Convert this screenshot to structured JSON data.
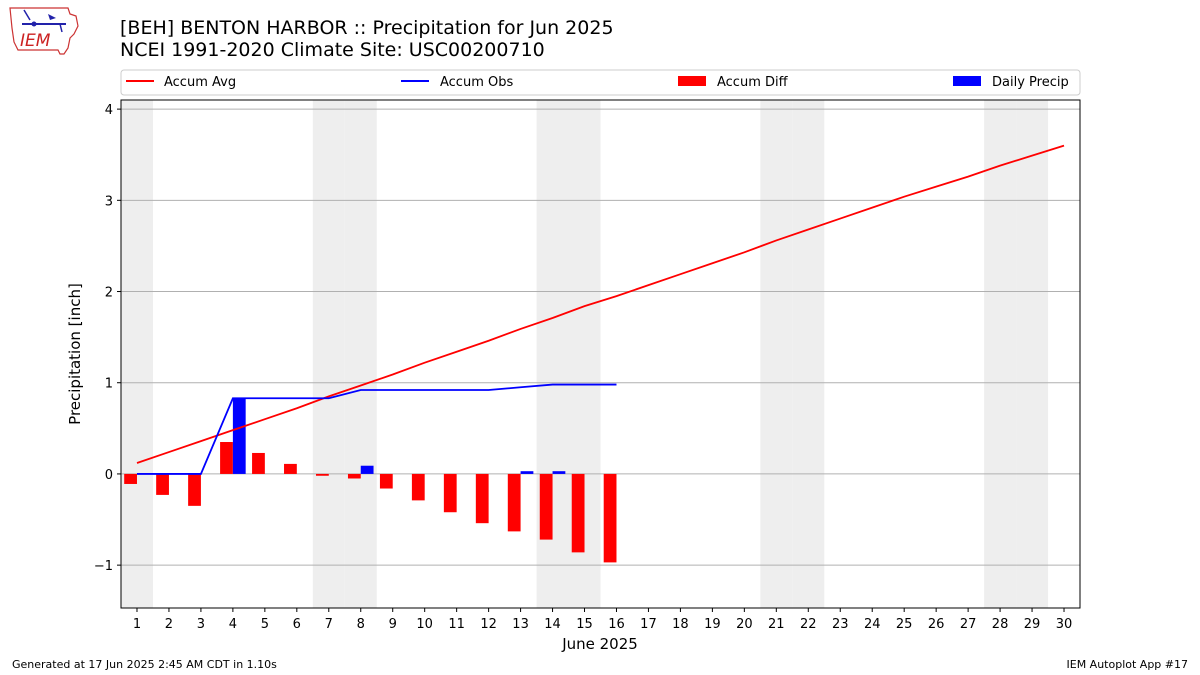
{
  "header": {
    "title_line1": "[BEH] BENTON HARBOR :: Precipitation for Jun 2025",
    "title_line2": "NCEI 1991-2020 Climate Site: USC00200710"
  },
  "logo": {
    "text": "IEM"
  },
  "footer": {
    "generated": "Generated at 17 Jun 2025 2:45 AM CDT in 1.10s",
    "app": "IEM Autoplot App #17"
  },
  "colors": {
    "avg": "#ff0000",
    "obs": "#0000ff",
    "diff": "#ff0000",
    "daily": "#0000ff",
    "weekend": "#eeeeee",
    "grid": "#b0b0b0"
  },
  "chart_data": {
    "type": "bar",
    "title": "[BEH] BENTON HARBOR :: Precipitation for Jun 2025",
    "xlabel": "June 2025",
    "ylabel": "Precipitation [inch]",
    "xlim": [
      0.5,
      30.5
    ],
    "ylim": [
      -1.47,
      4.1
    ],
    "yticks": [
      -1,
      0,
      1,
      2,
      3,
      4
    ],
    "ytick_labels": [
      "−1",
      "0",
      "1",
      "2",
      "3",
      "4"
    ],
    "xticks": [
      1,
      2,
      3,
      4,
      5,
      6,
      7,
      8,
      9,
      10,
      11,
      12,
      13,
      14,
      15,
      16,
      17,
      18,
      19,
      20,
      21,
      22,
      23,
      24,
      25,
      26,
      27,
      28,
      29,
      30
    ],
    "grid": "horizontal",
    "weekend_days": [
      1,
      7,
      8,
      14,
      15,
      21,
      22,
      28,
      29
    ],
    "legend": [
      "Accum Avg",
      "Accum Obs",
      "Accum Diff",
      "Daily Precip"
    ],
    "accum_avg": {
      "name": "Accum Avg",
      "x": [
        1,
        2,
        3,
        4,
        5,
        6,
        7,
        8,
        9,
        10,
        11,
        12,
        13,
        14,
        15,
        16,
        17,
        18,
        19,
        20,
        21,
        22,
        23,
        24,
        25,
        26,
        27,
        28,
        29,
        30
      ],
      "values": [
        0.12,
        0.24,
        0.36,
        0.48,
        0.6,
        0.72,
        0.85,
        0.97,
        1.09,
        1.22,
        1.34,
        1.46,
        1.59,
        1.71,
        1.84,
        1.95,
        2.07,
        2.19,
        2.31,
        2.43,
        2.56,
        2.68,
        2.8,
        2.92,
        3.04,
        3.15,
        3.26,
        3.38,
        3.49,
        3.6
      ]
    },
    "accum_obs": {
      "name": "Accum Obs",
      "x": [
        1,
        2,
        3,
        4,
        5,
        6,
        7,
        8,
        9,
        10,
        11,
        12,
        13,
        14,
        15,
        16
      ],
      "values": [
        0.0,
        0.0,
        0.0,
        0.83,
        0.83,
        0.83,
        0.83,
        0.92,
        0.92,
        0.92,
        0.92,
        0.92,
        0.95,
        0.98,
        0.98,
        0.98
      ]
    },
    "accum_diff": {
      "name": "Accum Diff",
      "x": [
        1,
        2,
        3,
        4,
        5,
        6,
        7,
        8,
        9,
        10,
        11,
        12,
        13,
        14,
        15,
        16
      ],
      "values": [
        -0.11,
        -0.23,
        -0.35,
        0.35,
        0.23,
        0.11,
        -0.02,
        -0.05,
        -0.16,
        -0.29,
        -0.42,
        -0.54,
        -0.63,
        -0.72,
        -0.86,
        -0.97
      ]
    },
    "daily_precip": {
      "name": "Daily Precip",
      "x": [
        1,
        2,
        3,
        4,
        5,
        6,
        7,
        8,
        9,
        10,
        11,
        12,
        13,
        14,
        15,
        16
      ],
      "values": [
        0,
        0,
        0,
        0.83,
        0,
        0,
        0,
        0.09,
        0,
        0,
        0,
        0,
        0.03,
        0.03,
        0,
        0
      ]
    }
  }
}
